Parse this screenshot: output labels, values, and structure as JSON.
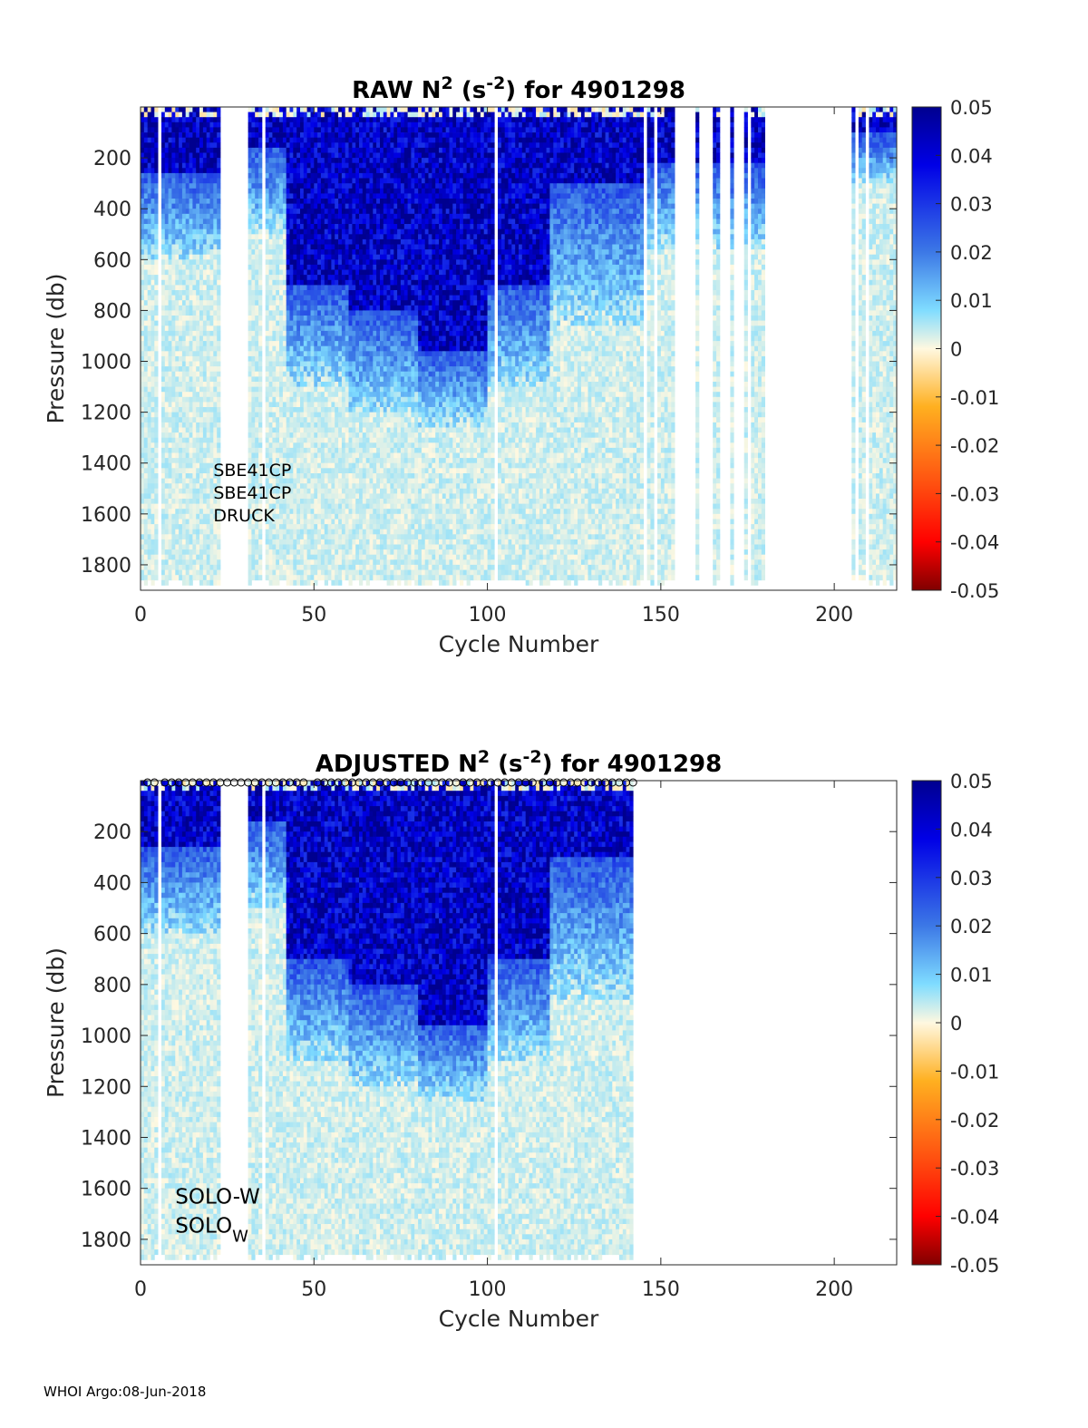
{
  "chart_data": [
    {
      "type": "heatmap",
      "panel": "raw",
      "title": {
        "prefix": "RAW N",
        "sup1": "2",
        "mid": " (s",
        "sup2": "-2",
        "suffix": ") for 4901298"
      },
      "xlabel": "Cycle Number",
      "ylabel": "Pressure (db)",
      "xlim": [
        0,
        218
      ],
      "ylim": [
        1900,
        0
      ],
      "xticks": [
        "0",
        "50",
        "100",
        "150",
        "200"
      ],
      "xtick_values": [
        0,
        50,
        100,
        150,
        200
      ],
      "yticks": [
        "200",
        "400",
        "600",
        "800",
        "1000",
        "1200",
        "1400",
        "1600",
        "1800"
      ],
      "ytick_values": [
        200,
        400,
        600,
        800,
        1000,
        1200,
        1400,
        1600,
        1800
      ],
      "colorbar": {
        "range": [
          -0.05,
          0.05
        ],
        "ticks": [
          "0.05",
          "0.04",
          "0.03",
          "0.02",
          "0.01",
          "0",
          "-0.01",
          "-0.02",
          "-0.03",
          "-0.04",
          "-0.05"
        ],
        "tick_values": [
          0.05,
          0.04,
          0.03,
          0.02,
          0.01,
          0,
          -0.01,
          -0.02,
          -0.03,
          -0.04,
          -0.05
        ],
        "colormap": "jet-reversed"
      },
      "annotations": [
        "SBE41CP",
        "SBE41CP",
        "DRUCK"
      ],
      "data_extent_cycles": [
        0,
        218
      ],
      "gaps_cycles": [
        [
          5,
          6
        ],
        [
          23,
          31
        ],
        [
          35,
          36
        ],
        [
          102,
          103
        ],
        [
          145,
          146
        ],
        [
          148,
          149
        ],
        [
          154,
          160
        ],
        [
          161,
          165
        ],
        [
          167,
          170
        ],
        [
          171,
          174
        ],
        [
          175,
          176
        ],
        [
          180,
          205
        ],
        [
          206,
          207
        ],
        [
          209,
          210
        ]
      ],
      "intensity_bands": [
        {
          "cycles": [
            0,
            30
          ],
          "strong_to_db": 250,
          "decay_to_db": 600
        },
        {
          "cycles": [
            30,
            42
          ],
          "strong_to_db": 150,
          "decay_to_db": 500
        },
        {
          "cycles": [
            42,
            60
          ],
          "strong_to_db": 700,
          "decay_to_db": 1100
        },
        {
          "cycles": [
            60,
            80
          ],
          "strong_to_db": 800,
          "decay_to_db": 1200
        },
        {
          "cycles": [
            80,
            100
          ],
          "strong_to_db": 950,
          "decay_to_db": 1250
        },
        {
          "cycles": [
            100,
            118
          ],
          "strong_to_db": 700,
          "decay_to_db": 1100
        },
        {
          "cycles": [
            118,
            145
          ],
          "strong_to_db": 300,
          "decay_to_db": 850
        },
        {
          "cycles": [
            145,
            180
          ],
          "strong_to_db": 220,
          "decay_to_db": 550
        },
        {
          "cycles": [
            180,
            218
          ],
          "strong_to_db": 100,
          "decay_to_db": 300
        }
      ]
    },
    {
      "type": "heatmap",
      "panel": "adjusted",
      "title": {
        "prefix": "ADJUSTED N",
        "sup1": "2",
        "mid": " (s",
        "sup2": "-2",
        "suffix": ") for 4901298"
      },
      "xlabel": "Cycle Number",
      "ylabel": "Pressure (db)",
      "xlim": [
        0,
        218
      ],
      "ylim": [
        1900,
        0
      ],
      "xticks": [
        "0",
        "50",
        "100",
        "150",
        "200"
      ],
      "xtick_values": [
        0,
        50,
        100,
        150,
        200
      ],
      "yticks": [
        "200",
        "400",
        "600",
        "800",
        "1000",
        "1200",
        "1400",
        "1600",
        "1800"
      ],
      "ytick_values": [
        200,
        400,
        600,
        800,
        1000,
        1200,
        1400,
        1600,
        1800
      ],
      "colorbar": {
        "range": [
          -0.05,
          0.05
        ],
        "ticks": [
          "0.05",
          "0.04",
          "0.03",
          "0.02",
          "0.01",
          "0",
          "-0.01",
          "-0.02",
          "-0.03",
          "-0.04",
          "-0.05"
        ],
        "tick_values": [
          0.05,
          0.04,
          0.03,
          0.02,
          0.01,
          0,
          -0.01,
          -0.02,
          -0.03,
          -0.04,
          -0.05
        ],
        "colormap": "jet-reversed"
      },
      "annotations": [
        "SOLO-W",
        "SOLO",
        "W"
      ],
      "data_extent_cycles": [
        0,
        142
      ],
      "gaps_cycles": [
        [
          5,
          6
        ],
        [
          23,
          31
        ],
        [
          35,
          36
        ],
        [
          102,
          103
        ]
      ],
      "qc_markers_cycles": [
        2,
        4,
        7,
        9,
        11,
        13,
        15,
        17,
        19,
        21,
        23,
        25,
        27,
        29,
        31,
        33,
        35,
        37,
        39,
        41,
        43,
        45,
        47,
        51,
        53,
        55,
        57,
        59,
        61,
        63,
        65,
        67,
        69,
        71,
        73,
        75,
        77,
        79,
        81,
        83,
        85,
        87,
        89,
        91,
        93,
        95,
        97,
        99,
        101,
        103,
        105,
        107,
        109,
        111,
        113,
        116,
        118,
        120,
        122,
        124,
        126,
        128,
        130,
        132,
        134,
        136,
        138,
        140,
        142
      ],
      "intensity_bands": [
        {
          "cycles": [
            0,
            30
          ],
          "strong_to_db": 250,
          "decay_to_db": 600
        },
        {
          "cycles": [
            30,
            42
          ],
          "strong_to_db": 150,
          "decay_to_db": 500
        },
        {
          "cycles": [
            42,
            60
          ],
          "strong_to_db": 700,
          "decay_to_db": 1100
        },
        {
          "cycles": [
            60,
            80
          ],
          "strong_to_db": 800,
          "decay_to_db": 1200
        },
        {
          "cycles": [
            80,
            100
          ],
          "strong_to_db": 950,
          "decay_to_db": 1250
        },
        {
          "cycles": [
            100,
            118
          ],
          "strong_to_db": 700,
          "decay_to_db": 1100
        },
        {
          "cycles": [
            118,
            142
          ],
          "strong_to_db": 300,
          "decay_to_db": 850
        }
      ]
    }
  ],
  "footer": "WHOI Argo:08-Jun-2018"
}
